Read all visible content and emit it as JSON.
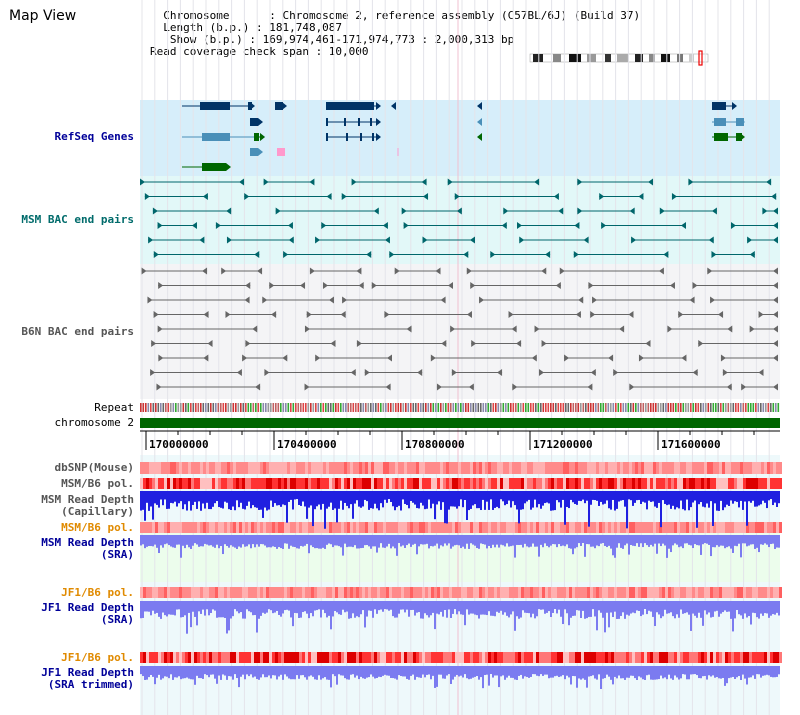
{
  "header": {
    "title": "Map View",
    "info_lines": [
      "  Chromosome      : Chromosome 2, reference assembly (C57BL/6J) (Build 37)",
      "  Length (b.p.) : 181,748,087",
      "   Show (b.p.) : 169,974,461-171,974,773 : 2,000,313 bp",
      "Read coverage check span : 10,000"
    ]
  },
  "labels": {
    "refseq": "RefSeq Genes",
    "msm_bac": "MSM BAC end pairs",
    "b6n_bac": "B6N BAC end pairs",
    "repeat": "Repeat",
    "chromosome": "chromosome 2",
    "dbsnp": "dbSNP(Mouse)",
    "msm_b6_pol_1": "MSM/B6 pol.",
    "msm_read_depth_cap": [
      "MSM Read Depth",
      "(Capillary)"
    ],
    "msm_b6_pol_2": "MSM/B6 pol.",
    "msm_read_depth_sra": [
      "MSM Read Depth",
      "(SRA)"
    ],
    "jf1_b6_pol_1": "JF1/B6 pol.",
    "jf1_read_depth_sra": [
      "JF1 Read Depth",
      "(SRA)"
    ],
    "jf1_b6_pol_2": "JF1/B6 pol.",
    "jf1_read_depth_trim": [
      "JF1 Read Depth",
      "(SRA trimmed)"
    ]
  },
  "axis": {
    "ticks": [
      "170000000",
      "170400000",
      "170800000",
      "171200000",
      "171600000"
    ]
  },
  "colors": {
    "label_navy": "#000099",
    "label_teal": "#006b6b",
    "label_gray": "#555555",
    "label_orange": "#e08a00",
    "refseq_band": "#d6eefa",
    "msm_band": "#e2f8f8",
    "b6n_band": "#f4f4f6",
    "chromosome_bar": "#006600",
    "gene_navy": "#003366",
    "gene_blue": "#4a8fb8",
    "gene_green": "#006600",
    "msm_bac": "#00666b",
    "b6n_bac": "#666666",
    "snp": "#ff8080",
    "capillary": "#2020e0",
    "sra": "#7b7bf0"
  }
}
